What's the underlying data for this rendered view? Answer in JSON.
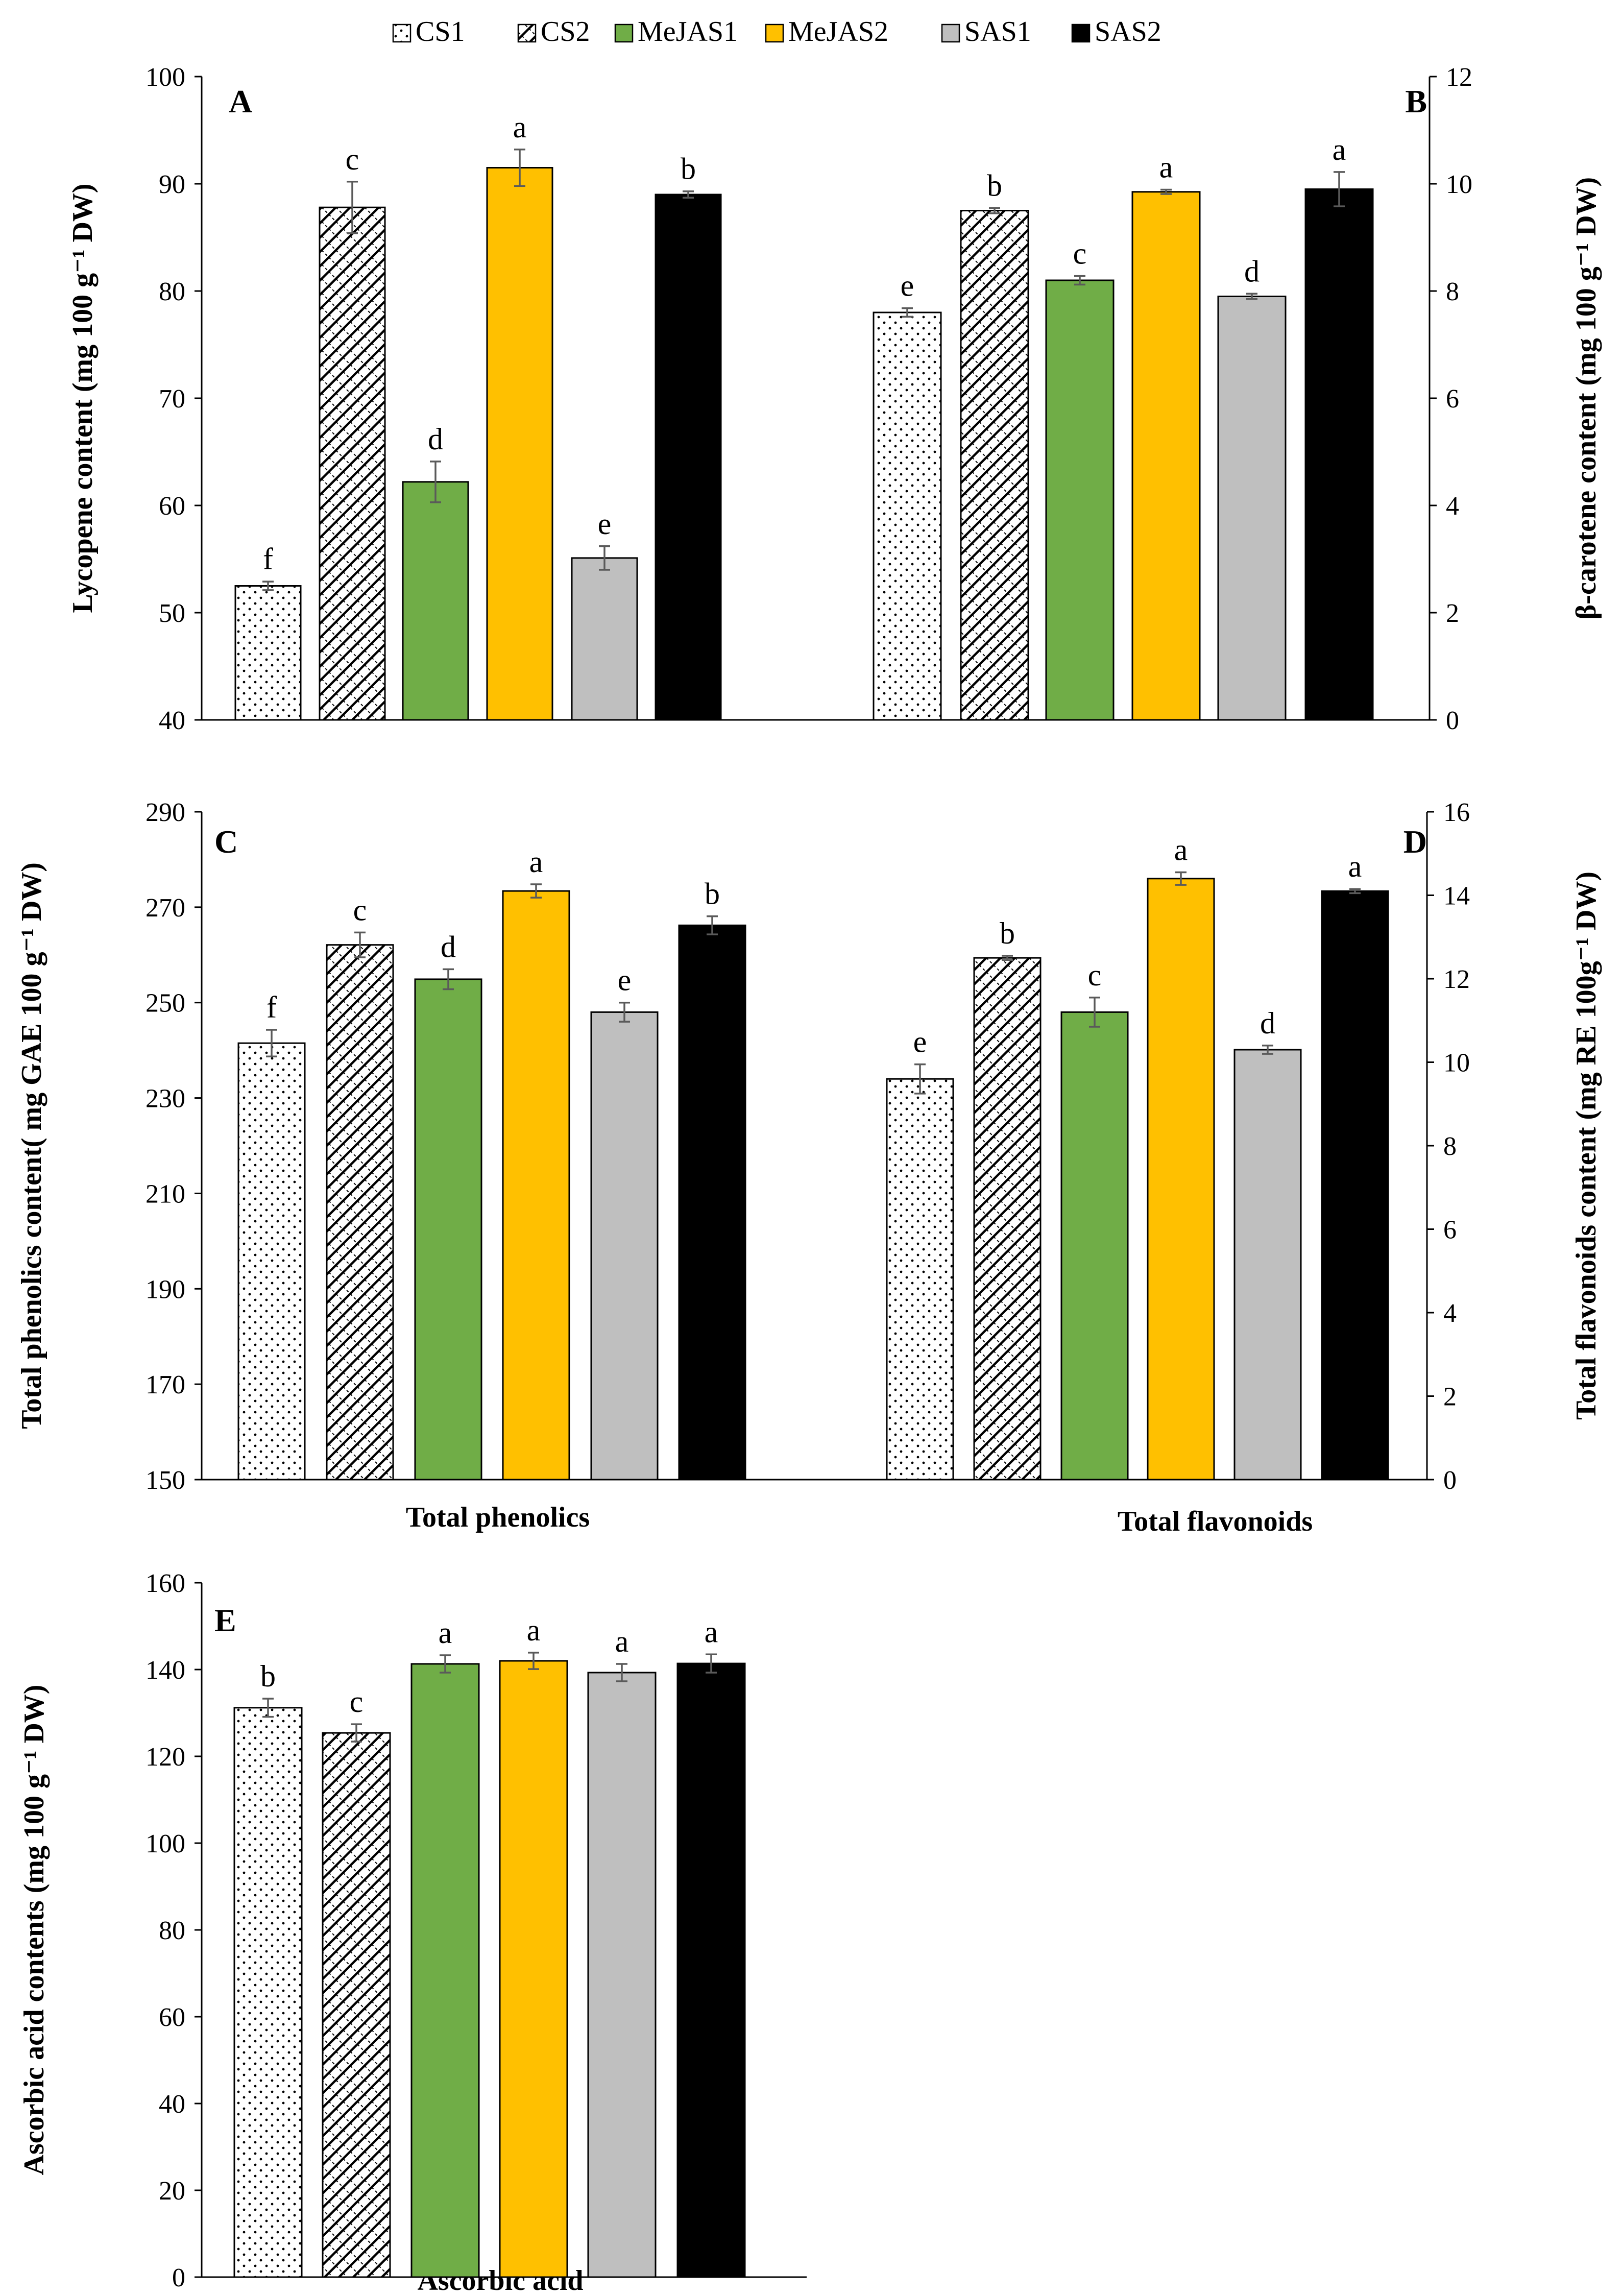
{
  "legend": [
    {
      "name": "CS1",
      "pattern": "dots"
    },
    {
      "name": "CS2",
      "pattern": "hatch"
    },
    {
      "name": "MeJAS1",
      "pattern": "solid",
      "color": "#70ad47"
    },
    {
      "name": "MeJAS2",
      "pattern": "solid",
      "color": "#ffc000"
    },
    {
      "name": "SAS1",
      "pattern": "solid",
      "color": "#bfbfbf"
    },
    {
      "name": "SAS2",
      "pattern": "solid",
      "color": "#000000"
    }
  ],
  "chart_data": [
    {
      "panel": "A",
      "type": "bar",
      "ylabel": "Lycopene content (mg 100 g⁻¹ DW)",
      "ylim": [
        40,
        100
      ],
      "yticks": [
        "40",
        "50",
        "60",
        "70",
        "80",
        "90",
        "100"
      ],
      "xlabel": "",
      "series": [
        "CS1",
        "CS2",
        "MeJAS1",
        "MeJAS2",
        "SAS1",
        "SAS2"
      ],
      "values": [
        52.5,
        87.8,
        62.2,
        91.5,
        55.1,
        89.0
      ],
      "errors": [
        0.4,
        2.4,
        1.9,
        1.7,
        1.1,
        0.3
      ],
      "letters": [
        "f",
        "c",
        "d",
        "a",
        "e",
        "b"
      ]
    },
    {
      "panel": "B",
      "type": "bar",
      "ylabel": "β-carotene content (mg 100 g⁻¹ DW)",
      "ylim": [
        0,
        12
      ],
      "yticks": [
        "0",
        "2",
        "4",
        "6",
        "8",
        "10",
        "12"
      ],
      "xlabel": "",
      "series": [
        "CS1",
        "CS2",
        "MeJAS1",
        "MeJAS2",
        "SAS1",
        "SAS2"
      ],
      "values": [
        7.6,
        9.5,
        8.2,
        9.85,
        7.9,
        9.9
      ],
      "errors": [
        0.08,
        0.05,
        0.08,
        0.04,
        0.05,
        0.32
      ],
      "letters": [
        "e",
        "b",
        "c",
        "a",
        "d",
        "a"
      ]
    },
    {
      "panel": "C",
      "type": "bar",
      "ylabel": "Total phenolics content( mg GAE 100 g⁻¹ DW)",
      "ylim": [
        150,
        290
      ],
      "yticks": [
        "150",
        "170",
        "190",
        "210",
        "230",
        "250",
        "270",
        "290"
      ],
      "xlabel": "Total phenolics",
      "series": [
        "CS1",
        "CS2",
        "MeJAS1",
        "MeJAS2",
        "SAS1",
        "SAS2"
      ],
      "values": [
        241.5,
        262.1,
        254.9,
        273.4,
        248.0,
        266.2
      ],
      "errors": [
        2.8,
        2.6,
        2.1,
        1.4,
        2.0,
        1.9
      ],
      "letters": [
        "f",
        "c",
        "d",
        "a",
        "e",
        "b"
      ]
    },
    {
      "panel": "D",
      "type": "bar",
      "ylabel": "Total flavonoids content (mg RE 100g⁻¹ DW)",
      "ylim": [
        0,
        16
      ],
      "yticks": [
        "0",
        "2",
        "4",
        "6",
        "8",
        "10",
        "12",
        "14",
        "16"
      ],
      "xlabel": "Total flavonoids",
      "series": [
        "CS1",
        "CS2",
        "MeJAS1",
        "MeJAS2",
        "SAS1",
        "SAS2"
      ],
      "values": [
        9.6,
        12.5,
        11.2,
        14.4,
        10.3,
        14.1
      ],
      "errors": [
        0.35,
        0.05,
        0.35,
        0.15,
        0.1,
        0.05
      ],
      "letters": [
        "e",
        "b",
        "c",
        "a",
        "d",
        "a"
      ]
    },
    {
      "panel": "E",
      "type": "bar",
      "ylabel": "Ascorbic acid contents (mg 100 g⁻¹ DW)",
      "ylim": [
        0,
        160
      ],
      "yticks": [
        "0",
        "20",
        "40",
        "60",
        "80",
        "100",
        "120",
        "140",
        "160"
      ],
      "xlabel": "Ascorbic acid",
      "series": [
        "CS1",
        "CS2",
        "MeJAS1",
        "MeJAS2",
        "SAS1",
        "SAS2"
      ],
      "values": [
        131.2,
        125.4,
        141.3,
        142.0,
        139.3,
        141.4
      ],
      "errors": [
        2.1,
        2.0,
        2.0,
        1.9,
        2.0,
        2.1
      ],
      "letters": [
        "b",
        "c",
        "a",
        "a",
        "a",
        "a"
      ]
    }
  ]
}
